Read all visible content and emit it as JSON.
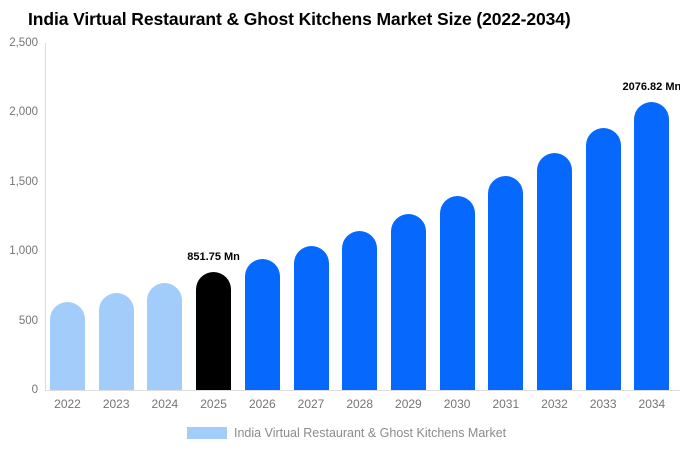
{
  "title": "India Virtual Restaurant & Ghost Kitchens Market Size (2022-2034)",
  "legend": {
    "label": "India Virtual Restaurant & Ghost Kitchens Market",
    "swatch_color": "#a2ccfa"
  },
  "colors": {
    "historical_bar": "#a2ccfa",
    "base_year_bar": "#000000",
    "forecast_bar": "#0668fc",
    "axis_line": "#dcdcdc",
    "tick_text": "#757575",
    "legend_text": "#8b8b8b",
    "value_label_text": "#000000",
    "background": "#ffffff"
  },
  "chart_data": {
    "type": "bar",
    "title": "India Virtual Restaurant & Ghost Kitchens Market Size (2022-2034)",
    "categories": [
      "2022",
      "2023",
      "2024",
      "2025",
      "2026",
      "2027",
      "2028",
      "2029",
      "2030",
      "2031",
      "2032",
      "2033",
      "2034"
    ],
    "values": [
      632,
      698,
      771,
      851.75,
      941,
      1039,
      1147,
      1267,
      1399,
      1545,
      1707,
      1885,
      2076.82
    ],
    "unit": "Mn",
    "xlabel": "",
    "ylabel": "",
    "ylim": [
      0,
      2500
    ],
    "y_ticks": [
      0,
      500,
      1000,
      1500,
      2000,
      2500
    ],
    "y_tick_labels": [
      "0",
      "500",
      "1,000",
      "1,500",
      "2,000",
      "2,500"
    ],
    "grid": false,
    "legend_position": "bottom",
    "bar_segments": {
      "historical_years": [
        "2022",
        "2023",
        "2024"
      ],
      "base_year": "2025",
      "forecast_years": [
        "2026",
        "2027",
        "2028",
        "2029",
        "2030",
        "2031",
        "2032",
        "2033",
        "2034"
      ]
    },
    "annotations": [
      {
        "category": "2025",
        "text": "851.75 Mn"
      },
      {
        "category": "2034",
        "text": "2076.82 Mn"
      }
    ]
  }
}
